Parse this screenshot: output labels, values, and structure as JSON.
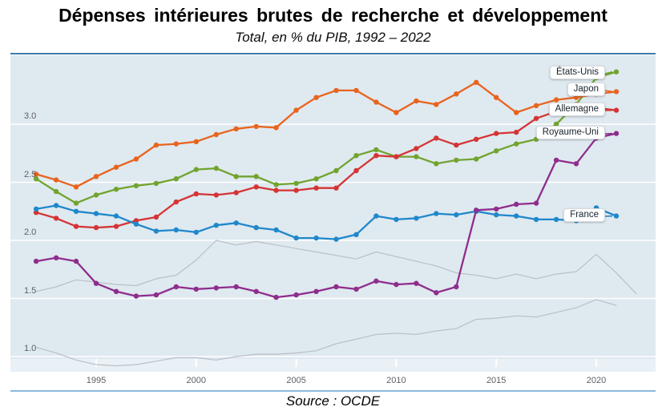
{
  "header": {
    "title": "Dépenses intérieures brutes de recherche et développement",
    "subtitle": "Total, en % du PIB, 1992 – 2022"
  },
  "footer": {
    "source": "Source : OCDE"
  },
  "colors": {
    "plot_bg": "#dfe9f0",
    "plot_bg_bottom": "#e9f0f6",
    "grid": "#ffffff",
    "top_rule": "#3c7cac",
    "bottom_rule": "#8cbade",
    "tick_text": "#5c6064",
    "gray_series": "#b9c0c7"
  },
  "chart_data": {
    "type": "line",
    "title": "Dépenses intérieures brutes de recherche et développement",
    "subtitle": "Total, en % du PIB, 1992 – 2022",
    "source": "Source : OCDE",
    "xlim": [
      1992,
      2022
    ],
    "ylim": [
      0.87,
      3.59
    ],
    "xticks": [
      "1995",
      "2000",
      "2005",
      "2010",
      "2015",
      "2020"
    ],
    "yticks": [
      "1.0",
      "1.5",
      "2.0",
      "2.5",
      "3.0"
    ],
    "grid": true,
    "legend": "direct-labels-at-line-end",
    "series": [
      {
        "label": "États-Unis",
        "color": "#71a42e",
        "markers": true,
        "x": [
          1992,
          1993,
          1994,
          1995,
          1996,
          1997,
          1998,
          1999,
          2000,
          2001,
          2002,
          2003,
          2004,
          2005,
          2006,
          2007,
          2008,
          2009,
          2010,
          2011,
          2012,
          2013,
          2014,
          2015,
          2016,
          2017,
          2018,
          2019,
          2020,
          2021
        ],
        "values": [
          2.53,
          2.42,
          2.32,
          2.39,
          2.44,
          2.47,
          2.49,
          2.53,
          2.61,
          2.62,
          2.55,
          2.55,
          2.48,
          2.49,
          2.53,
          2.6,
          2.73,
          2.78,
          2.72,
          2.72,
          2.66,
          2.69,
          2.7,
          2.77,
          2.83,
          2.87,
          3.0,
          3.17,
          3.4,
          3.45
        ]
      },
      {
        "label": "Japon",
        "color": "#e8641e",
        "markers": true,
        "x": [
          1992,
          1993,
          1994,
          1995,
          1996,
          1997,
          1998,
          1999,
          2000,
          2001,
          2002,
          2003,
          2004,
          2005,
          2006,
          2007,
          2008,
          2009,
          2010,
          2011,
          2012,
          2013,
          2014,
          2015,
          2016,
          2017,
          2018,
          2019,
          2020,
          2021
        ],
        "values": [
          2.57,
          2.52,
          2.46,
          2.55,
          2.63,
          2.7,
          2.82,
          2.83,
          2.85,
          2.91,
          2.96,
          2.98,
          2.97,
          3.12,
          3.23,
          3.29,
          3.29,
          3.19,
          3.1,
          3.2,
          3.17,
          3.26,
          3.36,
          3.23,
          3.1,
          3.16,
          3.21,
          3.23,
          3.26,
          3.28
        ]
      },
      {
        "label": "Allemagne",
        "color": "#d53434",
        "markers": true,
        "x": [
          1992,
          1993,
          1994,
          1995,
          1996,
          1997,
          1998,
          1999,
          2000,
          2001,
          2002,
          2003,
          2004,
          2005,
          2006,
          2007,
          2008,
          2009,
          2010,
          2011,
          2012,
          2013,
          2014,
          2015,
          2016,
          2017,
          2018,
          2019,
          2020,
          2021
        ],
        "values": [
          2.24,
          2.19,
          2.12,
          2.11,
          2.12,
          2.17,
          2.2,
          2.33,
          2.4,
          2.39,
          2.41,
          2.46,
          2.43,
          2.43,
          2.45,
          2.45,
          2.6,
          2.73,
          2.72,
          2.79,
          2.88,
          2.82,
          2.87,
          2.92,
          2.93,
          3.05,
          3.11,
          3.17,
          3.14,
          3.12
        ]
      },
      {
        "label": "Royaume-Uni",
        "color": "#8e2d8c",
        "markers": true,
        "x": [
          1992,
          1993,
          1994,
          1995,
          1996,
          1997,
          1998,
          1999,
          2000,
          2001,
          2002,
          2003,
          2004,
          2005,
          2006,
          2007,
          2008,
          2009,
          2010,
          2011,
          2012,
          2013,
          2014,
          2015,
          2016,
          2017,
          2018,
          2019,
          2020,
          2021
        ],
        "values": [
          1.82,
          1.85,
          1.82,
          1.63,
          1.56,
          1.52,
          1.53,
          1.6,
          1.58,
          1.59,
          1.6,
          1.56,
          1.51,
          1.53,
          1.56,
          1.6,
          1.58,
          1.65,
          1.62,
          1.63,
          1.55,
          1.6,
          2.26,
          2.27,
          2.31,
          2.32,
          2.69,
          2.66,
          2.88,
          2.92
        ]
      },
      {
        "label": "France",
        "color": "#1f88cb",
        "markers": true,
        "x": [
          1992,
          1993,
          1994,
          1995,
          1996,
          1997,
          1998,
          1999,
          2000,
          2001,
          2002,
          2003,
          2004,
          2005,
          2006,
          2007,
          2008,
          2009,
          2010,
          2011,
          2012,
          2013,
          2014,
          2015,
          2016,
          2017,
          2018,
          2019,
          2020,
          2021
        ],
        "values": [
          2.27,
          2.3,
          2.25,
          2.23,
          2.21,
          2.14,
          2.08,
          2.09,
          2.07,
          2.13,
          2.15,
          2.11,
          2.09,
          2.02,
          2.02,
          2.01,
          2.05,
          2.21,
          2.18,
          2.19,
          2.23,
          2.22,
          2.25,
          2.22,
          2.21,
          2.18,
          2.18,
          2.17,
          2.28,
          2.21
        ]
      },
      {
        "label": "",
        "color": "#b9c0c7",
        "markers": false,
        "x": [
          1992,
          1993,
          1994,
          1995,
          1996,
          1997,
          1998,
          1999,
          2000,
          2001,
          2002,
          2003,
          2004,
          2005,
          2006,
          2007,
          2008,
          2009,
          2010,
          2011,
          2012,
          2013,
          2014,
          2015,
          2016,
          2017,
          2018,
          2019,
          2020,
          2021,
          2022
        ],
        "values": [
          1.56,
          1.6,
          1.66,
          1.64,
          1.62,
          1.61,
          1.67,
          1.7,
          1.83,
          2.0,
          1.96,
          1.99,
          1.96,
          1.93,
          1.9,
          1.87,
          1.84,
          1.9,
          1.86,
          1.82,
          1.78,
          1.72,
          1.7,
          1.67,
          1.71,
          1.67,
          1.71,
          1.73,
          1.88,
          1.72,
          1.54
        ]
      },
      {
        "label": "",
        "color": "#b9c0c7",
        "markers": false,
        "x": [
          1992,
          1993,
          1994,
          1995,
          1996,
          1997,
          1998,
          1999,
          2000,
          2001,
          2002,
          2003,
          2004,
          2005,
          2006,
          2007,
          2008,
          2009,
          2010,
          2011,
          2012,
          2013,
          2014,
          2015,
          2016,
          2017,
          2018,
          2019,
          2020,
          2021
        ],
        "values": [
          1.08,
          1.03,
          0.97,
          0.93,
          0.92,
          0.93,
          0.96,
          0.99,
          0.99,
          0.97,
          1.0,
          1.02,
          1.02,
          1.03,
          1.05,
          1.11,
          1.15,
          1.19,
          1.2,
          1.19,
          1.22,
          1.24,
          1.32,
          1.33,
          1.35,
          1.34,
          1.38,
          1.42,
          1.49,
          1.44
        ]
      }
    ]
  }
}
